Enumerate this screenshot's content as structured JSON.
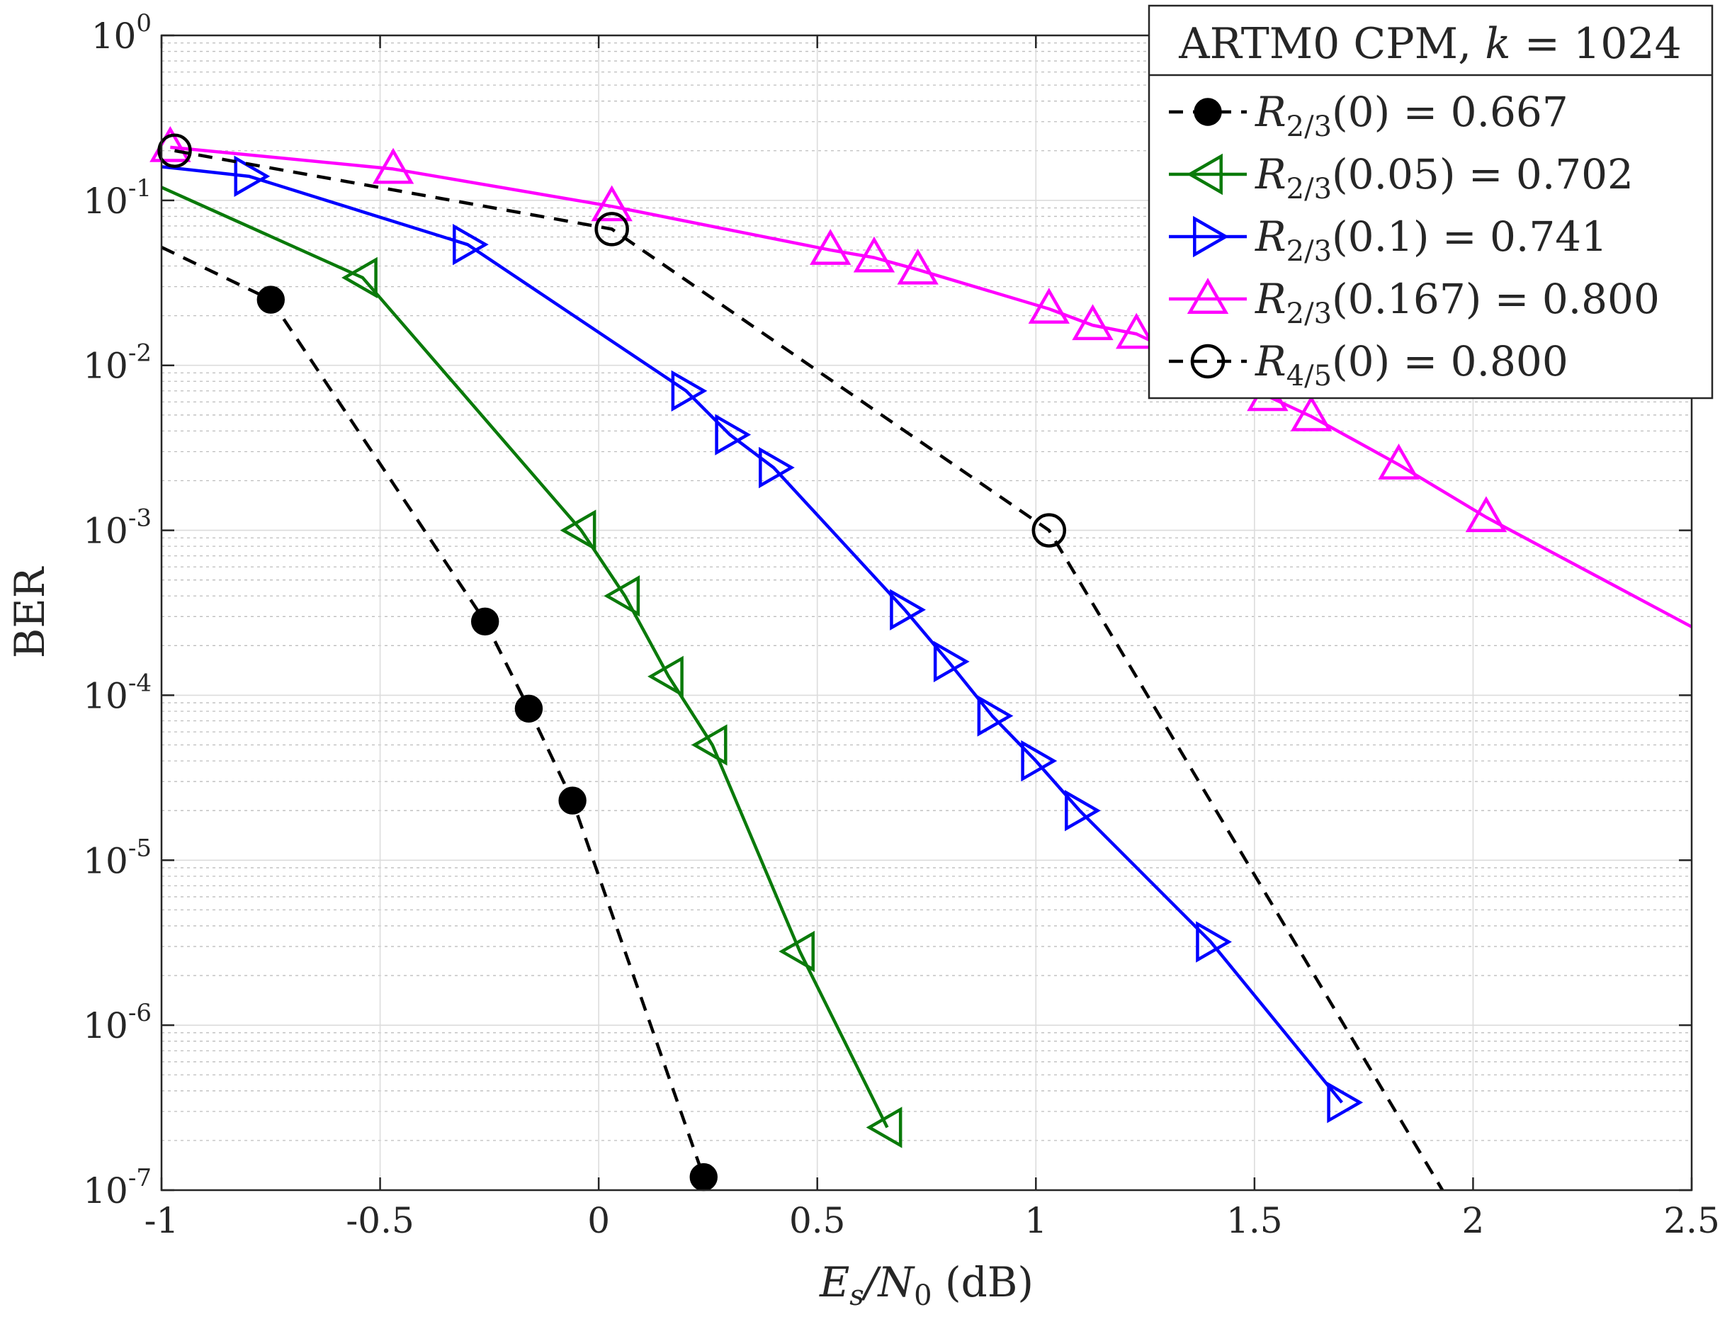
{
  "chart_data": {
    "type": "line",
    "title": "",
    "xlabel": "E_s/N_0 (dB)",
    "xlabel_parts": {
      "main": "E",
      "sub1": "s",
      "slash": "/N",
      "sub2": "0",
      "rest": " (dB)"
    },
    "ylabel": "BER",
    "xlim": [
      -1,
      2.5
    ],
    "ylim": [
      1e-07,
      1
    ],
    "y_scale": "log",
    "grid": true,
    "x_ticks": [
      -1,
      -0.5,
      0,
      0.5,
      1,
      1.5,
      2,
      2.5
    ],
    "x_tick_labels": [
      "-1",
      "-0.5",
      "0",
      "0.5",
      "1",
      "1.5",
      "2",
      "2.5"
    ],
    "y_ticks": [
      {
        "value": 1,
        "base": "10",
        "exp": "0"
      },
      {
        "value": 0.1,
        "base": "10",
        "exp": "-1"
      },
      {
        "value": 0.01,
        "base": "10",
        "exp": "-2"
      },
      {
        "value": 0.001,
        "base": "10",
        "exp": "-3"
      },
      {
        "value": 0.0001,
        "base": "10",
        "exp": "-4"
      },
      {
        "value": 1e-05,
        "base": "10",
        "exp": "-5"
      },
      {
        "value": 1e-06,
        "base": "10",
        "exp": "-6"
      },
      {
        "value": 1e-07,
        "base": "10",
        "exp": "-7"
      }
    ],
    "legend": {
      "position": "top-right",
      "title": "ARTM0 CPM, k = 1024",
      "title_parts": {
        "pre": "ARTM0 CPM, ",
        "var": "k",
        "post": " = 1024"
      }
    },
    "series": [
      {
        "name": "R_{2/3}(0) = 0.667",
        "label_parts": {
          "r": "R",
          "sub": "2/3",
          "arg": "(0) = 0.667"
        },
        "color": "#000000",
        "line": "dashed",
        "marker": "filled-circle",
        "x": [
          -1,
          -0.75,
          -0.26,
          -0.16,
          -0.06,
          0.24
        ],
        "y": [
          0.052,
          0.025,
          0.00028,
          8.3e-05,
          2.3e-05,
          1.2e-07
        ],
        "markers_from": 1
      },
      {
        "name": "R_{2/3}(0.05) = 0.702",
        "label_parts": {
          "r": "R",
          "sub": "2/3",
          "arg": "(0.05) = 0.702"
        },
        "color": "#0a7a0a",
        "line": "solid",
        "marker": "triangle-left",
        "x": [
          -1,
          -0.54,
          -0.04,
          0.06,
          0.16,
          0.26,
          0.46,
          0.66
        ],
        "y": [
          0.12,
          0.034,
          0.001,
          0.0004,
          0.00013,
          5e-05,
          2.8e-06,
          2.4e-07
        ],
        "markers_from": 1
      },
      {
        "name": "R_{2/3}(0.1) = 0.741",
        "label_parts": {
          "r": "R",
          "sub": "2/3",
          "arg": "(0.1) = 0.741"
        },
        "color": "#0000ff",
        "line": "solid",
        "marker": "triangle-right",
        "x": [
          -1,
          -0.8,
          -0.3,
          0.2,
          0.3,
          0.4,
          0.7,
          0.8,
          0.9,
          1.0,
          1.1,
          1.4,
          1.7
        ],
        "y": [
          0.16,
          0.14,
          0.054,
          0.007,
          0.0038,
          0.0024,
          0.00033,
          0.00016,
          7.5e-05,
          4e-05,
          2e-05,
          3.2e-06,
          3.4e-07
        ],
        "markers_from": 1
      },
      {
        "name": "R_{2/3}(0.167) = 0.800",
        "label_parts": {
          "r": "R",
          "sub": "2/3",
          "arg": "(0.167) = 0.800"
        },
        "color": "#ff00ff",
        "line": "solid",
        "marker": "triangle-up",
        "x": [
          -0.98,
          -0.47,
          0.03,
          0.53,
          0.63,
          0.73,
          1.03,
          1.13,
          1.23,
          1.53,
          1.63,
          1.83,
          2.03,
          2.5
        ],
        "y": [
          0.21,
          0.155,
          0.092,
          0.05,
          0.045,
          0.038,
          0.022,
          0.0175,
          0.0155,
          0.0065,
          0.0049,
          0.0025,
          0.0012,
          0.00026
        ],
        "markers_from": 0,
        "markers_to": 12
      },
      {
        "name": "R_{4/5}(0) = 0.800",
        "label_parts": {
          "r": "R",
          "sub": "4/5",
          "arg": "(0) = 0.800"
        },
        "color": "#000000",
        "line": "dashed",
        "marker": "open-circle",
        "x": [
          -0.97,
          0.03,
          1.03,
          1.93
        ],
        "y": [
          0.2,
          0.067,
          0.001,
          1e-07
        ],
        "markers_from": 0,
        "markers_to": 2
      }
    ]
  }
}
